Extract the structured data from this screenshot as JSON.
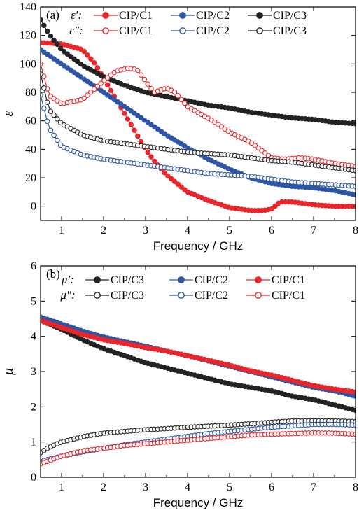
{
  "chart_data": [
    {
      "type": "line",
      "panel_label": "(a)",
      "xlabel": "Frequency / GHz",
      "ylabel": "ε",
      "xlim": [
        0.5,
        8
      ],
      "ylim": [
        -10,
        140
      ],
      "xticks": [
        1,
        2,
        3,
        4,
        5,
        6,
        7,
        8
      ],
      "yticks": [
        0,
        20,
        40,
        60,
        80,
        100,
        120,
        140
      ],
      "grid": false,
      "legend_position": "top-right",
      "legend_rows": [
        {
          "label": "ε′:",
          "entries": [
            "CIP/C1",
            "CIP/C2",
            "CIP/C3"
          ]
        },
        {
          "label": "ε″:",
          "entries": [
            "CIP/C1",
            "CIP/C2",
            "CIP/C3"
          ]
        }
      ],
      "series": [
        {
          "name": "ε′ CIP/C1",
          "color": "#e8262b",
          "filled": true,
          "x": [
            0.5,
            1,
            1.5,
            1.8,
            2,
            2.2,
            2.5,
            2.8,
            3,
            3.2,
            3.5,
            4,
            4.5,
            5,
            5.5,
            5.8,
            6,
            6.2,
            6.5,
            7,
            7.5,
            8
          ],
          "y": [
            115,
            114,
            110,
            100,
            90,
            80,
            65,
            50,
            40,
            32,
            22,
            10,
            4,
            -1,
            -3,
            -3,
            -2,
            3,
            3,
            1,
            0,
            0
          ]
        },
        {
          "name": "ε′ CIP/C2",
          "color": "#2e55a5",
          "filled": true,
          "x": [
            0.5,
            1,
            1.5,
            2,
            2.5,
            3,
            3.5,
            4,
            4.5,
            5,
            5.5,
            6,
            6.5,
            7,
            7.5,
            8
          ],
          "y": [
            110,
            100,
            90,
            80,
            70,
            60,
            50,
            41,
            33,
            26,
            20,
            16,
            14,
            13,
            11,
            8
          ]
        },
        {
          "name": "ε′ CIP/C3",
          "color": "#222222",
          "filled": true,
          "x": [
            0.5,
            0.7,
            1,
            1.5,
            2,
            2.5,
            3,
            3.5,
            4,
            4.5,
            5,
            5.5,
            6,
            6.5,
            7,
            7.5,
            8
          ],
          "y": [
            131,
            121,
            110,
            99,
            91,
            85,
            80,
            77,
            74,
            71,
            69,
            66,
            64,
            62,
            61,
            59,
            58
          ]
        },
        {
          "name": "ε″ CIP/C1",
          "color": "#e8262b",
          "filled": false,
          "x": [
            0.5,
            0.7,
            1,
            1.5,
            2,
            2.3,
            2.6,
            2.8,
            3,
            3.2,
            3.5,
            3.7,
            4,
            4.3,
            4.6,
            5,
            5.5,
            6,
            6.3,
            6.7,
            7,
            7.5,
            8
          ],
          "y": [
            100,
            78,
            72,
            75,
            88,
            95,
            97,
            96,
            88,
            80,
            83,
            80,
            70,
            65,
            60,
            52,
            45,
            34,
            33,
            34,
            33,
            30,
            28
          ]
        },
        {
          "name": "ε″ CIP/C2",
          "color": "#2e55a5",
          "filled": false,
          "x": [
            0.5,
            0.7,
            1,
            1.5,
            2,
            2.5,
            3,
            3.5,
            4,
            4.5,
            5,
            5.5,
            6,
            6.5,
            7,
            7.5,
            8
          ],
          "y": [
            78,
            55,
            42,
            36,
            33,
            31,
            29,
            27,
            25,
            23,
            22,
            21,
            19,
            17,
            16,
            15,
            14
          ]
        },
        {
          "name": "ε″ CIP/C3",
          "color": "#222222",
          "filled": false,
          "x": [
            0.5,
            0.7,
            1,
            1.5,
            2,
            2.5,
            3,
            3.5,
            4,
            4.5,
            5,
            5.5,
            6,
            6.5,
            7,
            7.5,
            8
          ],
          "y": [
            93,
            68,
            58,
            50,
            46,
            44,
            42,
            40,
            38,
            37,
            36,
            34,
            32,
            31,
            29,
            27,
            25
          ]
        }
      ]
    },
    {
      "type": "line",
      "panel_label": "(b)",
      "xlabel": "Frequency / GHz",
      "ylabel": "μ",
      "xlim": [
        0.5,
        8
      ],
      "ylim": [
        0,
        6
      ],
      "xticks": [
        1,
        2,
        3,
        4,
        5,
        6,
        7,
        8
      ],
      "yticks": [
        0,
        1,
        2,
        3,
        4,
        5,
        6
      ],
      "grid": false,
      "legend_position": "top",
      "legend_rows": [
        {
          "label": "μ′:",
          "entries": [
            "CIP/C3",
            "CIP/C2",
            "CIP/C1"
          ]
        },
        {
          "label": "μ″:",
          "entries": [
            "CIP/C3",
            "CIP/C2",
            "CIP/C1"
          ]
        }
      ],
      "series": [
        {
          "name": "μ′ CIP/C3",
          "color": "#222222",
          "filled": true,
          "x": [
            0.5,
            1,
            1.5,
            2,
            2.5,
            3,
            3.5,
            4,
            4.5,
            5,
            5.5,
            6,
            6.5,
            7,
            7.5,
            8
          ],
          "y": [
            4.45,
            4.2,
            3.9,
            3.65,
            3.45,
            3.25,
            3.1,
            2.95,
            2.8,
            2.65,
            2.55,
            2.45,
            2.3,
            2.2,
            2.05,
            1.9
          ]
        },
        {
          "name": "μ′ CIP/C2",
          "color": "#2e55a5",
          "filled": true,
          "x": [
            0.5,
            1,
            1.5,
            2,
            2.5,
            3,
            3.5,
            4,
            4.5,
            5,
            5.5,
            6,
            6.5,
            7,
            7.5,
            8
          ],
          "y": [
            4.55,
            4.35,
            4.15,
            3.98,
            3.85,
            3.72,
            3.58,
            3.45,
            3.3,
            3.15,
            3.0,
            2.85,
            2.7,
            2.55,
            2.45,
            2.3
          ]
        },
        {
          "name": "μ′ CIP/C1",
          "color": "#e8262b",
          "filled": true,
          "x": [
            0.5,
            1,
            1.5,
            2,
            2.5,
            3,
            3.5,
            4,
            4.5,
            5,
            5.5,
            6,
            6.5,
            7,
            7.5,
            8
          ],
          "y": [
            4.45,
            4.25,
            4.05,
            3.9,
            3.8,
            3.68,
            3.58,
            3.45,
            3.32,
            3.18,
            3.02,
            2.9,
            2.75,
            2.6,
            2.5,
            2.42
          ]
        },
        {
          "name": "μ″ CIP/C3",
          "color": "#222222",
          "filled": false,
          "x": [
            0.5,
            0.7,
            1,
            1.5,
            2,
            2.5,
            3,
            3.5,
            4,
            4.5,
            5,
            5.5,
            6,
            6.5,
            7,
            7.5,
            8
          ],
          "y": [
            0.7,
            0.85,
            1.0,
            1.15,
            1.25,
            1.3,
            1.35,
            1.38,
            1.42,
            1.45,
            1.48,
            1.52,
            1.56,
            1.6,
            1.6,
            1.6,
            1.58
          ]
        },
        {
          "name": "μ″ CIP/C2",
          "color": "#2e55a5",
          "filled": false,
          "x": [
            0.5,
            1,
            1.5,
            2,
            2.5,
            3,
            3.5,
            4,
            4.5,
            5,
            5.5,
            6,
            6.5,
            7,
            7.5,
            8
          ],
          "y": [
            0.45,
            0.6,
            0.72,
            0.82,
            0.92,
            1.0,
            1.08,
            1.16,
            1.24,
            1.3,
            1.36,
            1.42,
            1.46,
            1.5,
            1.5,
            1.48
          ]
        },
        {
          "name": "μ″ CIP/C1",
          "color": "#e8262b",
          "filled": false,
          "x": [
            0.5,
            1,
            1.5,
            2,
            2.5,
            3,
            3.5,
            4,
            4.5,
            5,
            5.5,
            6,
            6.5,
            7,
            7.5,
            8
          ],
          "y": [
            0.38,
            0.6,
            0.75,
            0.82,
            0.9,
            0.95,
            1.0,
            1.05,
            1.1,
            1.15,
            1.2,
            1.22,
            1.24,
            1.26,
            1.25,
            1.22
          ]
        }
      ]
    }
  ]
}
